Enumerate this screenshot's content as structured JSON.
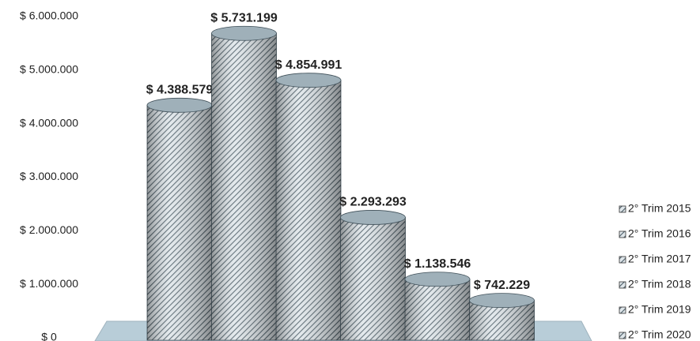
{
  "chart_data": {
    "type": "bar",
    "categories": [
      null
    ],
    "series": [
      {
        "name": "2° Trim 2015",
        "color": "#8fa3ad",
        "values": [
          4388579
        ],
        "value_labels": [
          "$ 4.388.579"
        ]
      },
      {
        "name": "2° Trim 2016",
        "color": "#8fa3ad",
        "values": [
          5731199
        ],
        "value_labels": [
          "$ 5.731.199"
        ]
      },
      {
        "name": "2° Trim 2017",
        "color": "#8fa3ad",
        "values": [
          4854991
        ],
        "value_labels": [
          "$ 4.854.991"
        ]
      },
      {
        "name": "2° Trim 2018",
        "color": "#8fa3ad",
        "values": [
          2293293
        ],
        "value_labels": [
          "$ 2.293.293"
        ]
      },
      {
        "name": "2° Trim 2019",
        "color": "#8fa3ad",
        "values": [
          1138546
        ],
        "value_labels": [
          "$ 1.138.546"
        ]
      },
      {
        "name": "2° Trim 2020",
        "color": "#8fa3ad",
        "values": [
          742229
        ],
        "value_labels": [
          "$ 742.229"
        ]
      }
    ],
    "ylim": [
      0,
      6000000
    ],
    "yticks": [
      {
        "value": 0,
        "label": "$ 0"
      },
      {
        "value": 1000000,
        "label": "$ 1.000.000"
      },
      {
        "value": 2000000,
        "label": "$ 2.000.000"
      },
      {
        "value": 3000000,
        "label": "$ 3.000.000"
      },
      {
        "value": 4000000,
        "label": "$ 4.000.000"
      },
      {
        "value": 5000000,
        "label": "$ 5.000.000"
      },
      {
        "value": 6000000,
        "label": "$ 6.000.000"
      }
    ],
    "grid": false,
    "legend": "right"
  }
}
